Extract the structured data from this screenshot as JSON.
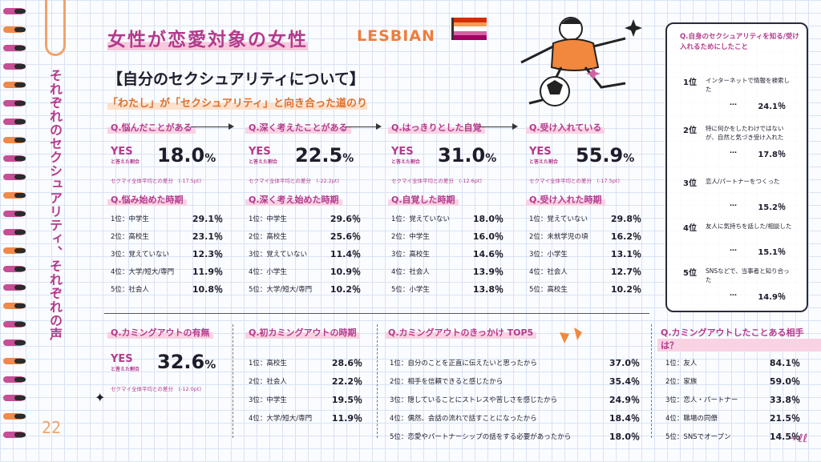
{
  "page": {
    "vertical_text": "それぞれのセクシュアリティ、それぞれの声",
    "page_number": "22",
    "main_title": "女性が恋愛対象の女性",
    "main_title_en": "LESBIAN",
    "section_title": "【自分のセクシュアリティについて】",
    "subtitle": "「わたし」が「セクシュアリティ」と向き合った道のり",
    "flag_colors": [
      "#d52d00",
      "#ff9a56",
      "#ffffff",
      "#d362a4",
      "#a30262"
    ]
  },
  "yes_label": "YES",
  "yes_sub": "と答えた割合",
  "stages": [
    {
      "question": "Q.悩んだことがある",
      "value": "18.0",
      "unit": "%",
      "diff_label": "セクマイ全体平均との差分",
      "diff": "(-17.5pt)",
      "timing_question": "Q.悩み始めた時期",
      "ranks": [
        {
          "rank": "1位：",
          "label": "中学生",
          "value": "29.1％"
        },
        {
          "rank": "2位：",
          "label": "高校生",
          "value": "23.1％"
        },
        {
          "rank": "3位：",
          "label": "覚えていない",
          "value": "12.3％"
        },
        {
          "rank": "4位：",
          "label": "大学/短大/専門",
          "value": "11.9％"
        },
        {
          "rank": "5位：",
          "label": "社会人",
          "value": "10.8％"
        }
      ]
    },
    {
      "question": "Q.深く考えたことがある",
      "value": "22.5",
      "unit": "%",
      "diff_label": "セクマイ全体平均との差分",
      "diff": "(-22.2pt)",
      "timing_question": "Q.深く考え始めた時期",
      "ranks": [
        {
          "rank": "1位：",
          "label": "中学生",
          "value": "29.6％"
        },
        {
          "rank": "2位：",
          "label": "高校生",
          "value": "25.6％"
        },
        {
          "rank": "3位：",
          "label": "覚えていない",
          "value": "11.4％"
        },
        {
          "rank": "4位：",
          "label": "小学生",
          "value": "10.9％"
        },
        {
          "rank": "5位：",
          "label": "大学/短大/専門",
          "value": "10.2％"
        }
      ]
    },
    {
      "question": "Q.はっきりとした自覚",
      "value": "31.0",
      "unit": "%",
      "diff_label": "セクマイ全体平均との差分",
      "diff": "(-12.6pt)",
      "timing_question": "Q.自覚した時期",
      "ranks": [
        {
          "rank": "1位：",
          "label": "覚えていない",
          "value": "18.0％"
        },
        {
          "rank": "2位：",
          "label": "中学生",
          "value": "16.0％"
        },
        {
          "rank": "3位：",
          "label": "高校生",
          "value": "14.6％"
        },
        {
          "rank": "4位：",
          "label": "社会人",
          "value": "13.9％"
        },
        {
          "rank": "5位：",
          "label": "小学生",
          "value": "13.8％"
        }
      ]
    },
    {
      "question": "Q.受け入れている",
      "value": "55.9",
      "unit": "%",
      "diff_label": "セクマイ全体平均との差分",
      "diff": "(-17.5pt)",
      "timing_question": "Q.受け入れた時期",
      "ranks": [
        {
          "rank": "1位：",
          "label": "覚えていない",
          "value": "29.8％"
        },
        {
          "rank": "2位：",
          "label": "未就学児の頃",
          "value": "16.2％"
        },
        {
          "rank": "3位：",
          "label": "小学生",
          "value": "13.1％"
        },
        {
          "rank": "4位：",
          "label": "社会人",
          "value": "12.7％"
        },
        {
          "rank": "5位：",
          "label": "高校生",
          "value": "10.2％"
        }
      ]
    }
  ],
  "right_box": {
    "title": "Q.自身のセクシュアリティを知る/受け入れるためにしたこと",
    "items": [
      {
        "rank": "1位",
        "text": "インターネットで情報を検索した",
        "value": "24.1％"
      },
      {
        "rank": "2位",
        "text": "特に何かをしたわけではないが、自然と気づき受け入れた",
        "value": "17.8％"
      },
      {
        "rank": "3位",
        "text": "恋人/パートナーをつくった",
        "value": "15.2％"
      },
      {
        "rank": "4位",
        "text": "友人に気持ちを話した/相談した",
        "value": "15.1％"
      },
      {
        "rank": "5位",
        "text": "SNSなどで、当事者と知り合った",
        "value": "14.9％"
      }
    ],
    "dots": "…"
  },
  "comingout": {
    "question": "Q.カミングアウトの有無",
    "value": "32.6",
    "unit": "%",
    "diff_label": "セクマイ全体平均との差分",
    "diff": "(-12.0pt)"
  },
  "first_comingout": {
    "question": "Q.初カミングアウトの時期",
    "ranks": [
      {
        "rank": "1位：",
        "label": "高校生",
        "value": "28.6％"
      },
      {
        "rank": "2位：",
        "label": "社会人",
        "value": "22.2％"
      },
      {
        "rank": "3位：",
        "label": "中学生",
        "value": "19.5％"
      },
      {
        "rank": "4位：",
        "label": "大学/短大/専門",
        "value": "11.9％"
      }
    ]
  },
  "trigger": {
    "question": "Q.カミングアウトのきっかけ TOP5",
    "ranks": [
      {
        "rank": "1位：",
        "label": "自分のことを正直に伝えたいと思ったから",
        "value": "37.0％"
      },
      {
        "rank": "2位：",
        "label": "相手を信頼できると感じたから",
        "value": "35.4％"
      },
      {
        "rank": "3位：",
        "label": "隠していることにストレスや苦しさを感じたから",
        "value": "24.9％"
      },
      {
        "rank": "4位：",
        "label": "偶然、会話の流れで話すことになったから",
        "value": "18.4％"
      },
      {
        "rank": "5位：",
        "label": "恋愛やパートナーシップの話をする必要があったから",
        "value": "18.0％"
      }
    ]
  },
  "partners": {
    "question": "Q.カミングアウトしたことある相手は？",
    "ranks": [
      {
        "rank": "1位：",
        "label": "友人",
        "value": "84.1％"
      },
      {
        "rank": "2位：",
        "label": "家族",
        "value": "59.0％"
      },
      {
        "rank": "3位：",
        "label": "恋人・パートナー",
        "value": "33.8％"
      },
      {
        "rank": "4位：",
        "label": "職場の同僚",
        "value": "21.5％"
      },
      {
        "rank": "5位：",
        "label": "SNSでオープン",
        "value": "14.5％"
      }
    ]
  }
}
